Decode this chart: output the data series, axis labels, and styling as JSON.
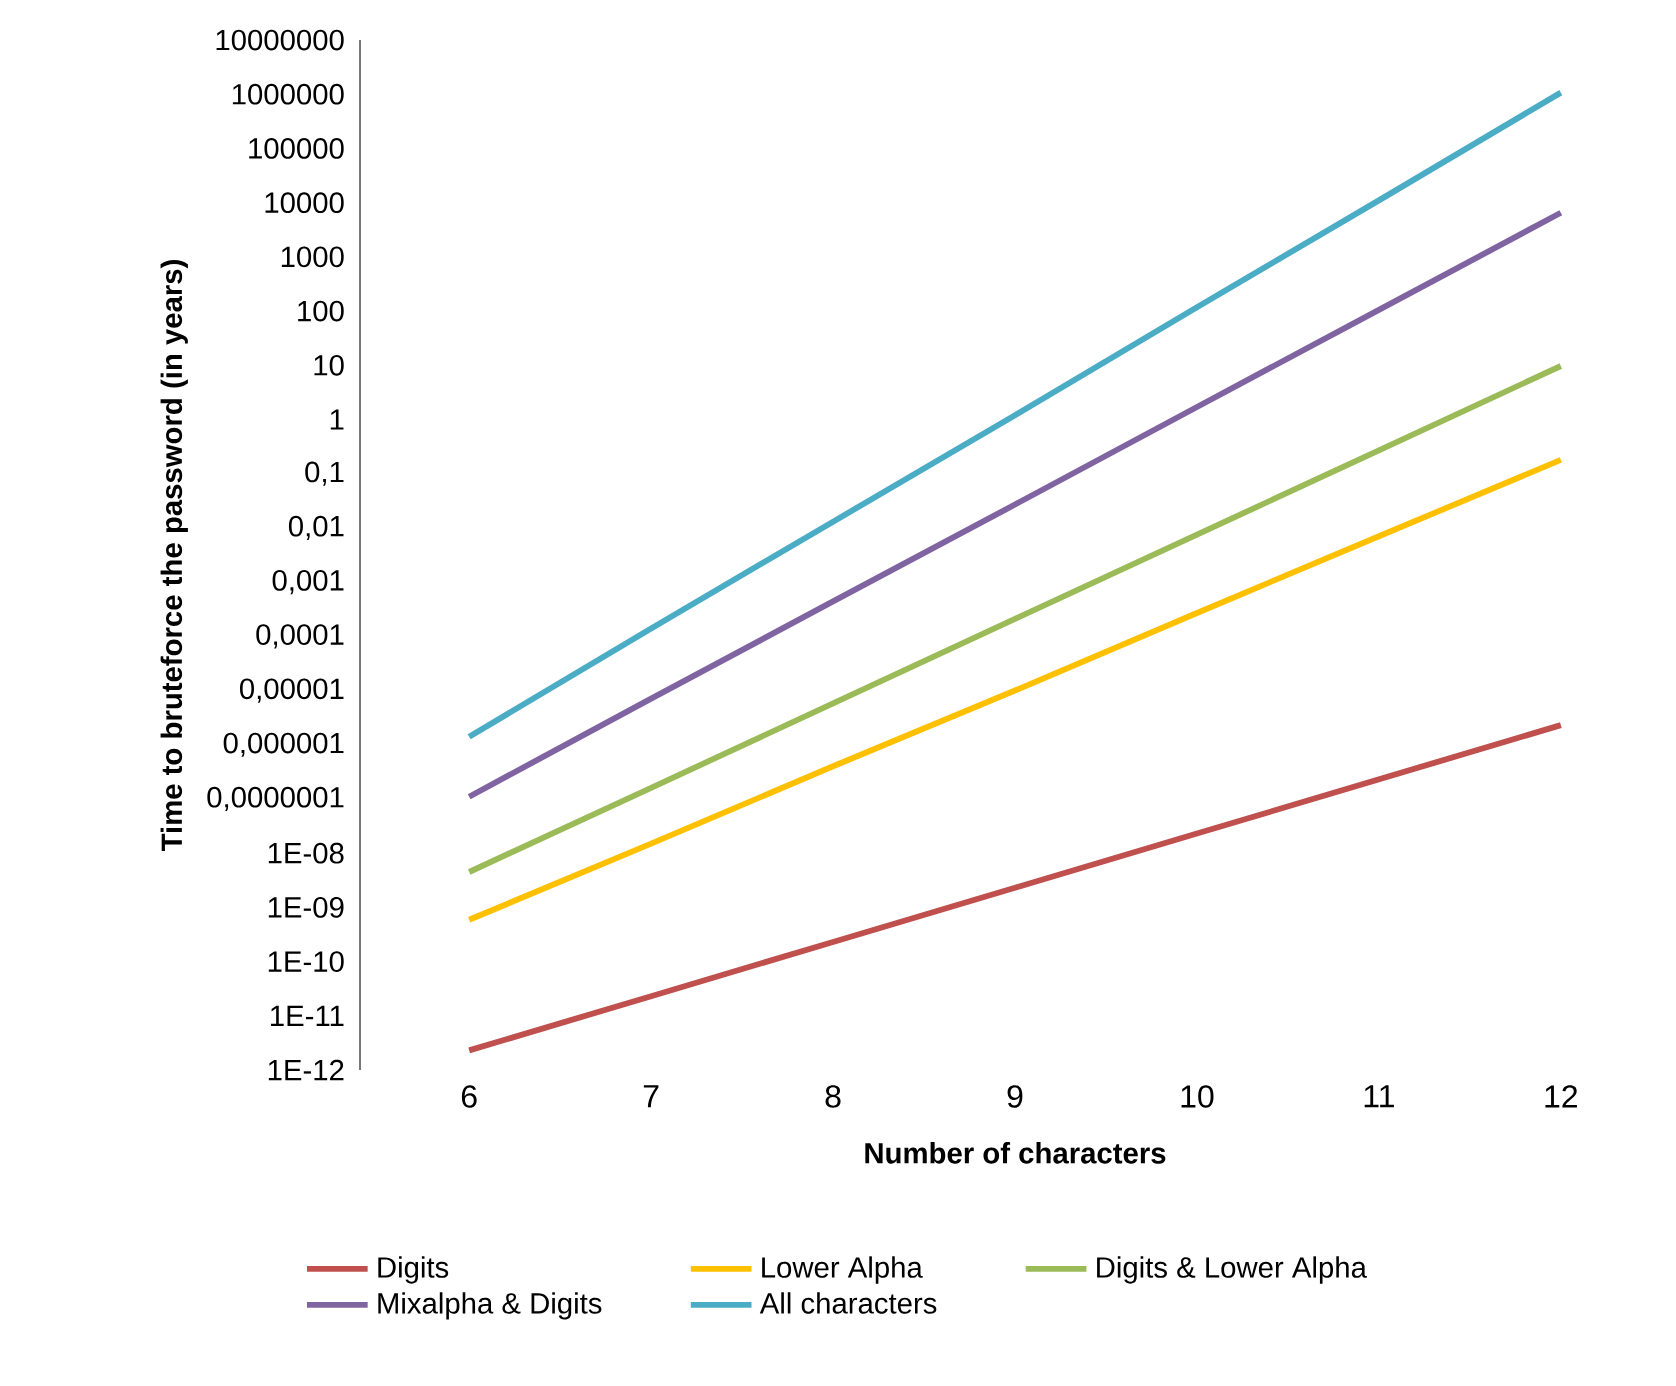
{
  "chart_data": {
    "type": "line",
    "xlabel": "Number of characters",
    "ylabel": "Time to bruteforce the password (in years)",
    "categories": [
      "6",
      "7",
      "8",
      "9",
      "10",
      "11",
      "12"
    ],
    "series": [
      {
        "name": "Digits",
        "color": "#c0504d",
        "values": [
          2.3e-12,
          2.3e-11,
          2.3e-10,
          2.3e-09,
          2.3e-08,
          2.3e-07,
          2.3e-06
        ]
      },
      {
        "name": "Lower Alpha",
        "color": "#ffc000",
        "values": [
          5.9e-10,
          1.5e-08,
          4e-07,
          1e-05,
          0.00027,
          0.007,
          0.18
        ]
      },
      {
        "name": "Digits & Lower Alpha",
        "color": "#9bbb59",
        "values": [
          4.5e-09,
          1.6e-07,
          5.8e-06,
          0.00021,
          0.0075,
          0.27,
          9.7
        ]
      },
      {
        "name": "Mixalpha & Digits",
        "color": "#8064a2",
        "values": [
          1.1e-07,
          7.1e-06,
          0.00044,
          0.027,
          1.7,
          105,
          6500
        ]
      },
      {
        "name": "All characters",
        "color": "#4bacc6",
        "values": [
          1.4e-06,
          0.00014,
          0.013,
          1.2,
          118,
          11000,
          1070000
        ]
      }
    ],
    "log": "y",
    "ylim": [
      1e-12,
      10000000.0
    ],
    "yticks": [
      {
        "value": 1e-12,
        "label": "1E-12"
      },
      {
        "value": 1e-11,
        "label": "1E-11"
      },
      {
        "value": 1e-10,
        "label": "1E-10"
      },
      {
        "value": 1e-09,
        "label": "1E-09"
      },
      {
        "value": 1e-08,
        "label": "1E-08"
      },
      {
        "value": 1e-07,
        "label": "0,0000001"
      },
      {
        "value": 1e-06,
        "label": "0,000001"
      },
      {
        "value": 1e-05,
        "label": "0,00001"
      },
      {
        "value": 0.0001,
        "label": "0,0001"
      },
      {
        "value": 0.001,
        "label": "0,001"
      },
      {
        "value": 0.01,
        "label": "0,01"
      },
      {
        "value": 0.1,
        "label": "0,1"
      },
      1,
      10,
      100,
      1000,
      10000,
      100000,
      1000000,
      10000000
    ],
    "legend": "bottom",
    "marker": "none",
    "line_style": "solid"
  }
}
